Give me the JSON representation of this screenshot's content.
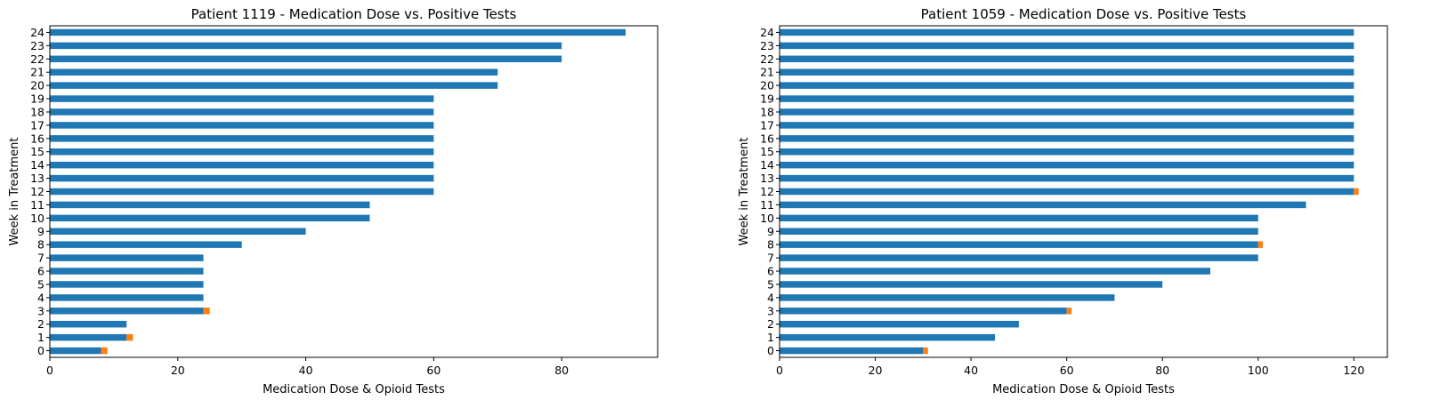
{
  "chart_data": [
    {
      "type": "bar",
      "orientation": "horizontal",
      "stacked": true,
      "title": "Patient 1119 - Medication Dose vs. Positive Tests",
      "xlabel": "Medication Dose & Opioid Tests",
      "ylabel": "Week in Treatment",
      "categories": [
        "0",
        "1",
        "2",
        "3",
        "4",
        "5",
        "6",
        "7",
        "8",
        "9",
        "10",
        "11",
        "12",
        "13",
        "14",
        "15",
        "16",
        "17",
        "18",
        "19",
        "20",
        "21",
        "22",
        "23",
        "24"
      ],
      "xlim": [
        0,
        95
      ],
      "xticks": [
        0,
        20,
        40,
        60,
        80
      ],
      "grid": false,
      "series": [
        {
          "color": "#1f77b4",
          "values": [
            8,
            12,
            12,
            24,
            24,
            24,
            24,
            24,
            30,
            40,
            50,
            50,
            60,
            60,
            60,
            60,
            60,
            60,
            60,
            60,
            70,
            70,
            80,
            80,
            90
          ]
        },
        {
          "color": "#ff7f0e",
          "values": [
            1,
            1,
            0,
            1,
            0,
            0,
            0,
            0,
            0,
            0,
            0,
            0,
            0,
            0,
            0,
            0,
            0,
            0,
            0,
            0,
            0,
            0,
            0,
            0,
            0
          ]
        }
      ]
    },
    {
      "type": "bar",
      "orientation": "horizontal",
      "stacked": true,
      "title": "Patient 1059 - Medication Dose vs. Positive Tests",
      "xlabel": "Medication Dose & Opioid Tests",
      "ylabel": "Week in Treatment",
      "categories": [
        "0",
        "1",
        "2",
        "3",
        "4",
        "5",
        "6",
        "7",
        "8",
        "9",
        "10",
        "11",
        "12",
        "13",
        "14",
        "15",
        "16",
        "17",
        "18",
        "19",
        "20",
        "21",
        "22",
        "23",
        "24"
      ],
      "xlim": [
        0,
        127
      ],
      "xticks": [
        0,
        20,
        40,
        60,
        80,
        100,
        120
      ],
      "grid": false,
      "series": [
        {
          "color": "#1f77b4",
          "values": [
            30,
            45,
            50,
            60,
            70,
            80,
            90,
            100,
            100,
            100,
            100,
            110,
            120,
            120,
            120,
            120,
            120,
            120,
            120,
            120,
            120,
            120,
            120,
            120,
            120
          ]
        },
        {
          "color": "#ff7f0e",
          "values": [
            1,
            0,
            0,
            1,
            0,
            0,
            0,
            0,
            1,
            0,
            0,
            0,
            1,
            0,
            0,
            0,
            0,
            0,
            0,
            0,
            0,
            0,
            0,
            0,
            0
          ]
        }
      ]
    }
  ]
}
